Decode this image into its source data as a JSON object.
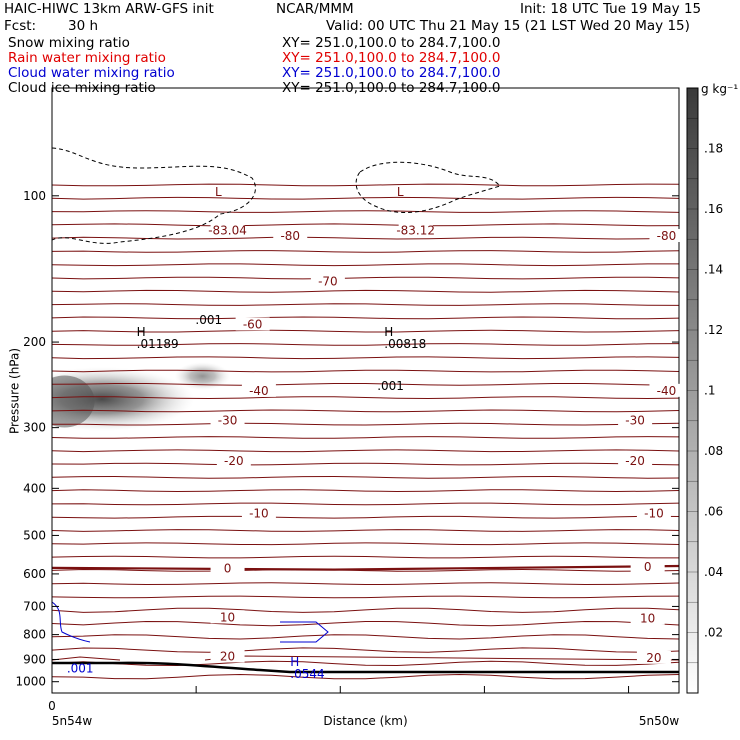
{
  "header": {
    "model": "HAIC-HIWC 13km ARW-GFS init",
    "org": "NCAR/MMM",
    "init": "Init: 18 UTC Tue 19 May 15",
    "fcst_label": "Fcst:",
    "fcst_value": "30 h",
    "valid": "Valid: 00 UTC Thu 21 May 15 (21 LST Wed 20 May 15)"
  },
  "fields": [
    {
      "name": "Snow mixing ratio",
      "xy": "XY= 251.0,100.0 to 284.7,100.0",
      "color": "#000000"
    },
    {
      "name": "Rain water mixing ratio",
      "xy": "XY= 251.0,100.0 to 284.7,100.0",
      "color": "#e00000"
    },
    {
      "name": "Cloud water mixing ratio",
      "xy": "XY= 251.0,100.0 to 284.7,100.0",
      "color": "#0000d0"
    },
    {
      "name": "Cloud ice mixing ratio",
      "xy": "XY= 251.0,100.0 to 284.7,100.0",
      "color": "#000000"
    }
  ],
  "chart_data": {
    "type": "cross-section",
    "ylabel": "Pressure (hPa)",
    "xlabel": "Distance (km)",
    "y_ticks": [
      100,
      200,
      300,
      400,
      500,
      600,
      700,
      800,
      900,
      1000
    ],
    "ylim": [
      1055,
      60
    ],
    "y_scale": "log",
    "x_tick_zero": "0",
    "x_left_label": "5n54w",
    "x_right_label": "5n50w",
    "colorbar": {
      "unit": "g kg⁻¹",
      "ticks": [
        ".02",
        ".04",
        ".06",
        ".08",
        ".1",
        ".12",
        ".14",
        ".16",
        ".18"
      ],
      "tick_values": [
        0.02,
        0.04,
        0.06,
        0.08,
        0.1,
        0.12,
        0.14,
        0.16,
        0.18
      ],
      "range": [
        0,
        0.2
      ]
    },
    "temperature_labels": [
      {
        "text": "-83.04",
        "p": 118,
        "xf": 0.28
      },
      {
        "text": "-80",
        "p": 121,
        "xf": 0.38
      },
      {
        "text": "-83.12",
        "p": 118,
        "xf": 0.58
      },
      {
        "text": "-80",
        "p": 121,
        "xf": 0.98
      },
      {
        "text": "-70",
        "p": 150,
        "xf": 0.44
      },
      {
        "text": "-60",
        "p": 184,
        "xf": 0.32
      },
      {
        "text": "-40",
        "p": 252,
        "xf": 0.33
      },
      {
        "text": "-40",
        "p": 252,
        "xf": 0.98
      },
      {
        "text": "-30",
        "p": 290,
        "xf": 0.28
      },
      {
        "text": "-30",
        "p": 290,
        "xf": 0.93
      },
      {
        "text": "-20",
        "p": 351,
        "xf": 0.29
      },
      {
        "text": "-20",
        "p": 351,
        "xf": 0.93
      },
      {
        "text": "-10",
        "p": 451,
        "xf": 0.33
      },
      {
        "text": "-10",
        "p": 451,
        "xf": 0.96
      },
      {
        "text": "0",
        "p": 585,
        "xf": 0.28
      },
      {
        "text": "0",
        "p": 580,
        "xf": 0.95
      },
      {
        "text": "10",
        "p": 737,
        "xf": 0.28
      },
      {
        "text": "10",
        "p": 742,
        "xf": 0.95
      },
      {
        "text": "20",
        "p": 887,
        "xf": 0.28
      },
      {
        "text": "20",
        "p": 893,
        "xf": 0.96
      }
    ],
    "extrema": [
      {
        "mark": "L",
        "p": 103,
        "xf": 0.26,
        "color": "#7a1010"
      },
      {
        "mark": "L",
        "p": 103,
        "xf": 0.55,
        "color": "#7a1010"
      },
      {
        "mark": "H",
        "value": ".01189",
        "p": 200,
        "xf": 0.135,
        "color": "#000000"
      },
      {
        "mark": "H",
        "value": ".00818",
        "p": 200,
        "xf": 0.53,
        "color": "#000000"
      },
      {
        "mark": "H",
        "value": ".0544",
        "p": 955,
        "xf": 0.38,
        "color": "#0000d0"
      }
    ],
    "contour_labels": [
      {
        "text": ".001",
        "p": 180,
        "xf": 0.25,
        "color": "#000000"
      },
      {
        "text": ".001",
        "p": 246,
        "xf": 0.54,
        "color": "#000000"
      },
      {
        "text": ".001",
        "p": 940,
        "xf": 0.045,
        "color": "#0000d0"
      }
    ]
  }
}
